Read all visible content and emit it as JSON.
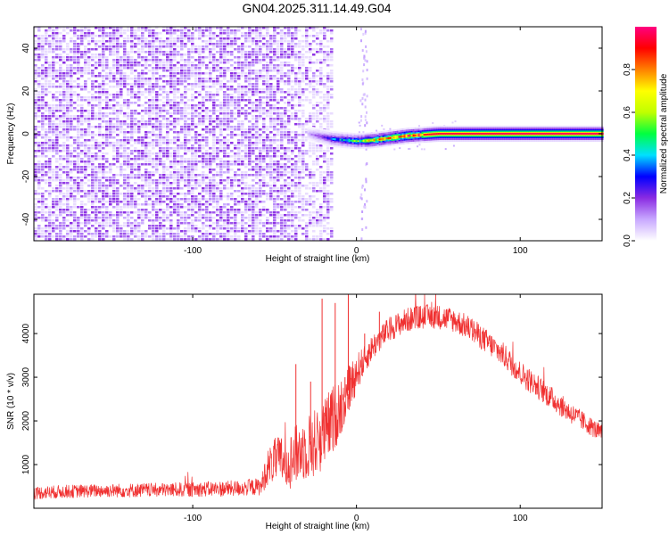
{
  "title": "GN04.2025.311.14.49.G04",
  "chart_data": [
    {
      "type": "heatmap",
      "xlabel": "Height of straight line (km)",
      "ylabel": "Frequency (Hz)",
      "xlim": [
        -197,
        150
      ],
      "ylim": [
        -50,
        50
      ],
      "x_ticks": [
        -100,
        0,
        100
      ],
      "y_ticks": [
        -40,
        -20,
        0,
        20,
        40
      ],
      "noise_region": {
        "x": [
          -197,
          -15
        ],
        "y": [
          -50,
          50
        ],
        "level": 0.12
      },
      "signal_band": [
        {
          "x": -30,
          "freq": 0,
          "amp": 0.1
        },
        {
          "x": -15,
          "freq": -2.5,
          "amp": 0.35
        },
        {
          "x": 0,
          "freq": -3.5,
          "amp": 0.55
        },
        {
          "x": 10,
          "freq": -3.0,
          "amp": 0.7
        },
        {
          "x": 20,
          "freq": -2.0,
          "amp": 0.8
        },
        {
          "x": 30,
          "freq": -1.0,
          "amp": 0.9
        },
        {
          "x": 50,
          "freq": 0.0,
          "amp": 0.95
        },
        {
          "x": 100,
          "freq": 0.0,
          "amp": 0.97
        },
        {
          "x": 150,
          "freq": 0.0,
          "amp": 0.97
        }
      ],
      "colorbar": {
        "label": "Normalized spectral amplitude",
        "range": [
          0,
          1
        ],
        "ticks": [
          "0.0",
          "0.2",
          "0.4",
          "0.6",
          "0.8"
        ],
        "tick_values": [
          0,
          0.2,
          0.4,
          0.6,
          0.8
        ],
        "colors": [
          "#ffffff",
          "#c8a8ff",
          "#8a2be2",
          "#0000ff",
          "#00e0ff",
          "#00ff40",
          "#c0ff00",
          "#ffff00",
          "#ff8000",
          "#ff0000",
          "#ff0080"
        ]
      }
    },
    {
      "type": "line",
      "xlabel": "Height of straight line (km)",
      "ylabel": "SNR (10 * v/v)",
      "xlim": [
        -197,
        150
      ],
      "ylim": [
        0,
        4900
      ],
      "x_ticks": [
        -100,
        0,
        100
      ],
      "y_ticks": [
        1000,
        2000,
        3000,
        4000
      ],
      "color": "#f03030",
      "series": [
        {
          "x": [
            -197,
            -180,
            -160,
            -140,
            -120,
            -100,
            -80,
            -70,
            -58,
            -55,
            -50,
            -45,
            -40,
            -35,
            -30,
            -25,
            -20,
            -15,
            -10,
            -5,
            0,
            5,
            10,
            15,
            20,
            25,
            30,
            35,
            40,
            45,
            50,
            55,
            60,
            70,
            80,
            90,
            100,
            110,
            120,
            130,
            140,
            150
          ],
          "y": [
            350,
            380,
            400,
            410,
            420,
            430,
            450,
            460,
            500,
            900,
            1100,
            1100,
            1100,
            1300,
            1400,
            1500,
            1700,
            2000,
            2300,
            2700,
            3100,
            3400,
            3700,
            3900,
            4100,
            4200,
            4300,
            4350,
            4380,
            4400,
            4380,
            4350,
            4300,
            4100,
            3800,
            3500,
            3100,
            2800,
            2500,
            2200,
            1950,
            1700
          ],
          "spread": [
            150,
            150,
            150,
            160,
            160,
            170,
            180,
            180,
            200,
            400,
            500,
            600,
            650,
            700,
            750,
            800,
            800,
            800,
            700,
            600,
            450,
            320,
            300,
            280,
            280,
            280,
            280,
            280,
            280,
            280,
            280,
            280,
            280,
            280,
            280,
            280,
            280,
            280,
            260,
            240,
            220,
            200
          ]
        }
      ],
      "spikes": [
        {
          "x": -37,
          "y": 3300
        },
        {
          "x": -28,
          "y": 2900
        },
        {
          "x": -21,
          "y": 4800
        },
        {
          "x": -13,
          "y": 4700
        },
        {
          "x": -7,
          "y": 3000
        },
        {
          "x": -5,
          "y": 4900
        },
        {
          "x": 5,
          "y": 4000
        },
        {
          "x": 14,
          "y": 4500
        }
      ]
    }
  ]
}
